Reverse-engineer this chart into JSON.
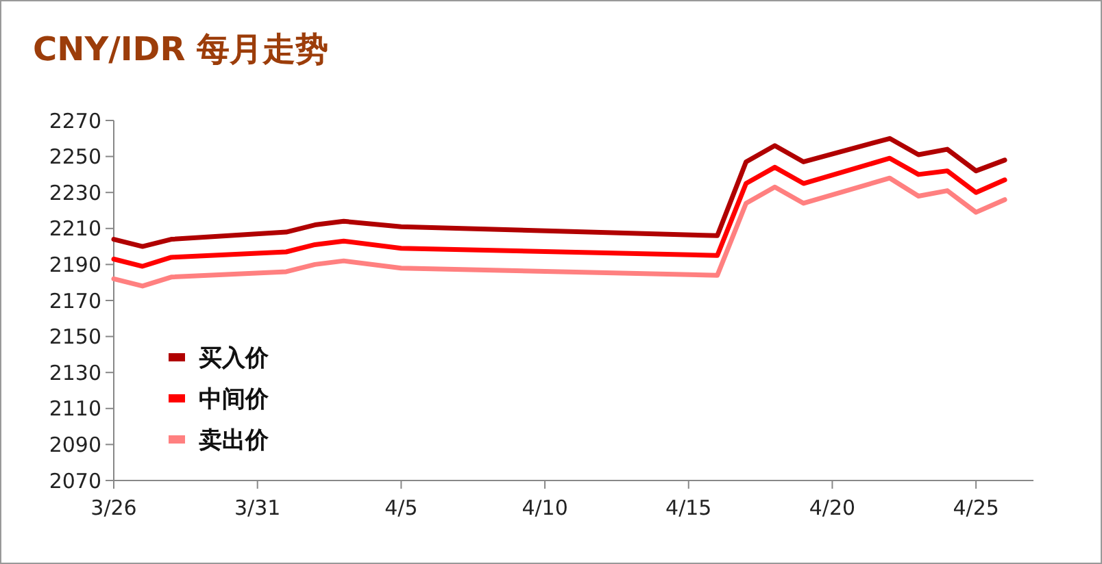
{
  "chart_data": {
    "type": "line",
    "title": "CNY/IDR 每月走势",
    "x": [
      "--03-26",
      "--03-27",
      "--03-28",
      "--04-01",
      "--04-02",
      "--04-03",
      "--04-05",
      "--04-16",
      "--04-17",
      "--04-18",
      "--04-19",
      "--04-22",
      "--04-23",
      "--04-24",
      "--04-25",
      "--04-26"
    ],
    "series": [
      {
        "name": "买入价",
        "color": "#b00000",
        "values": [
          2204,
          2200,
          2204,
          2208,
          2212,
          2214,
          2211,
          2206,
          2247,
          2256,
          2247,
          2260,
          2251,
          2254,
          2242,
          2248
        ]
      },
      {
        "name": "中间价",
        "color": "#ff0000",
        "values": [
          2193,
          2189,
          2194,
          2197,
          2201,
          2203,
          2199,
          2195,
          2235,
          2244,
          2235,
          2249,
          2240,
          2242,
          2230,
          2237
        ]
      },
      {
        "name": "卖出价",
        "color": "#ff8080",
        "values": [
          2182,
          2178,
          2183,
          2186,
          2190,
          2192,
          2188,
          2184,
          2224,
          2233,
          2224,
          2238,
          2228,
          2231,
          2219,
          2226
        ]
      }
    ],
    "xlim": [
      "--03-26",
      "--04-27"
    ],
    "xticks": [
      {
        "value": "--03-26",
        "label": "3/26"
      },
      {
        "value": "--03-31",
        "label": "3/31"
      },
      {
        "value": "--04-05",
        "label": "4/5"
      },
      {
        "value": "--04-10",
        "label": "4/10"
      },
      {
        "value": "--04-15",
        "label": "4/15"
      },
      {
        "value": "--04-20",
        "label": "4/20"
      },
      {
        "value": "--04-25",
        "label": "4/25"
      }
    ],
    "ylim": [
      2070,
      2270
    ],
    "yticks": [
      2070,
      2090,
      2110,
      2130,
      2150,
      2170,
      2190,
      2210,
      2230,
      2250,
      2270
    ],
    "grid": false,
    "legend": "bottom left",
    "marker": "none",
    "line_style": "solid"
  }
}
